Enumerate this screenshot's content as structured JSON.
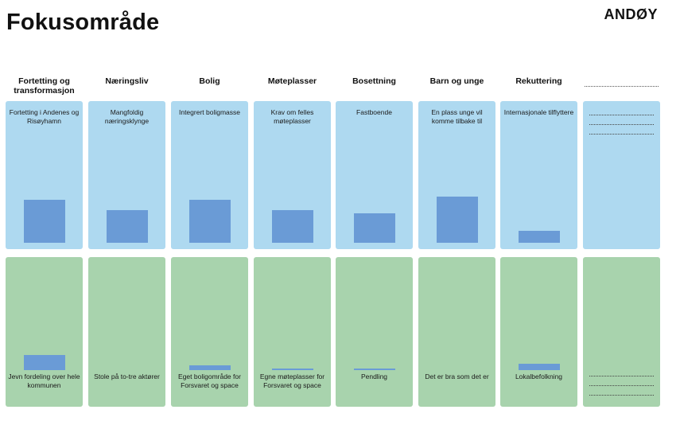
{
  "header": {
    "title": "Fokusområde",
    "brand": "ANDØY"
  },
  "columns": [
    {
      "header": "Fortetting og transformasjon",
      "top_label": "Fortetting i Andenes og Risøyhamn",
      "top_level": 0.29,
      "bottom_label": "Jevn fordeling over hele kommunen",
      "bottom_level": 0.1
    },
    {
      "header": "Næringsliv",
      "top_label": "Mangfoldig næringsklynge",
      "top_level": 0.22,
      "bottom_label": "Stole på to-tre aktører",
      "bottom_level": 0
    },
    {
      "header": "Bolig",
      "top_label": "Integrert boligmasse",
      "top_level": 0.29,
      "bottom_label": "Eget boligområde for Forsvaret og space",
      "bottom_level": 0.03
    },
    {
      "header": "Møteplasser",
      "top_label": "Krav om felles møteplasser",
      "top_level": 0.22,
      "bottom_label": "Egne møteplasser for Forsvaret og space",
      "bottom_level": 0.01
    },
    {
      "header": "Bosettning",
      "top_label": "Fastboende",
      "top_level": 0.2,
      "bottom_label": "Pendling",
      "bottom_level": 0.01
    },
    {
      "header": "Barn og unge",
      "top_label": "En plass unge vil komme tilbake til",
      "top_level": 0.31,
      "bottom_label": "Det er bra som det er",
      "bottom_level": 0
    },
    {
      "header": "Rekuttering",
      "top_label": "Internasjonale tilflyttere",
      "top_level": 0.08,
      "bottom_label": "Lokalbefolkning",
      "bottom_level": 0.04
    },
    {
      "header": "",
      "top_label": "",
      "top_level": 0,
      "bottom_label": "",
      "bottom_level": 0
    }
  ],
  "colors": {
    "top_panel": "#aed9f0",
    "bottom_panel": "#a8d3ad",
    "bar": "#6a9bd6"
  }
}
